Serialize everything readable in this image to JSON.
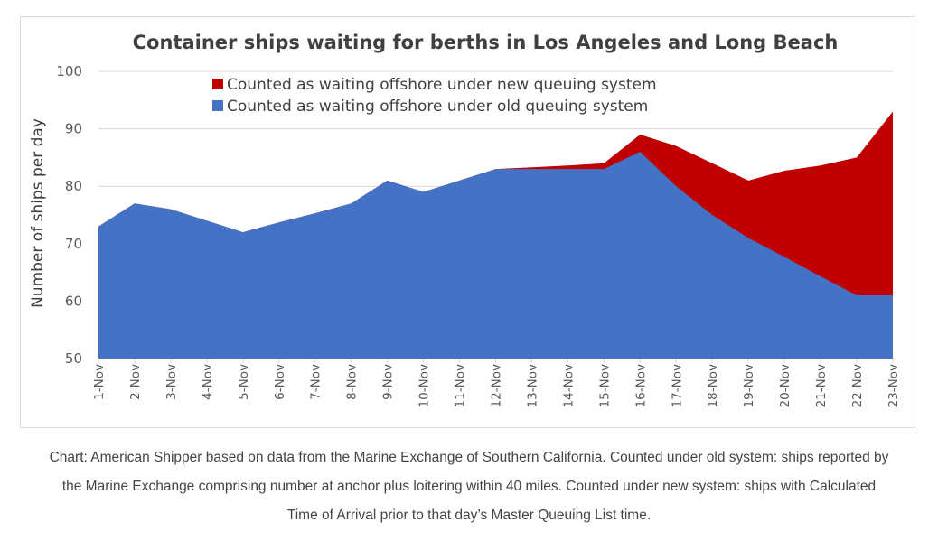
{
  "chart_data": {
    "type": "area",
    "stacked": true,
    "title": "Container ships waiting for berths in Los Angeles and Long Beach",
    "xlabel": "",
    "ylabel": "Number of ships per day",
    "ylim": [
      50,
      100
    ],
    "yticks": [
      50,
      60,
      70,
      80,
      90,
      100
    ],
    "grid": true,
    "legend_position": "top-center",
    "categories": [
      "1-Nov",
      "2-Nov",
      "3-Nov",
      "4-Nov",
      "5-Nov",
      "6-Nov",
      "7-Nov",
      "8-Nov",
      "9-Nov",
      "10-Nov",
      "11-Nov",
      "12-Nov",
      "13-Nov",
      "14-Nov",
      "15-Nov",
      "16-Nov",
      "17-Nov",
      "18-Nov",
      "19-Nov",
      "20-Nov",
      "21-Nov",
      "22-Nov",
      "23-Nov"
    ],
    "series": [
      {
        "name": "Counted as waiting offshore under old queuing system",
        "color": "#4472C4",
        "values": [
          73,
          77,
          76,
          74,
          72,
          73.7,
          75.3,
          77,
          81,
          79,
          81,
          83,
          83,
          83,
          83,
          86,
          80,
          75,
          71,
          67.7,
          64.3,
          61,
          61
        ]
      },
      {
        "name": "Counted as waiting offshore under new queuing system",
        "color": "#C00000",
        "values": [
          0,
          0,
          0,
          0,
          0,
          0,
          0,
          0,
          0,
          0,
          0,
          0,
          0.3,
          0.6,
          1,
          3,
          7,
          9,
          10,
          15,
          19.3,
          24,
          32
        ]
      }
    ],
    "totals": [
      73,
      77,
      76,
      74,
      72,
      73.7,
      75.3,
      77,
      81,
      79,
      81,
      83,
      83.3,
      83.6,
      84,
      89,
      87,
      84,
      81,
      82.7,
      83.6,
      85,
      93
    ]
  },
  "legend": [
    {
      "label": "Counted as waiting offshore under new queuing system",
      "color": "#C00000"
    },
    {
      "label": "Counted as waiting offshore under old queuing system",
      "color": "#4472C4"
    }
  ],
  "caption": {
    "lines": [
      "Chart: American Shipper based on data from the Marine Exchange of Southern California. Counted under old system: ships reported by",
      "the Marine Exchange comprising number at anchor plus loitering within 40 miles. Counted under new system: ships with Calculated",
      "Time of Arrival prior to that day’s Master Queuing List time."
    ]
  }
}
